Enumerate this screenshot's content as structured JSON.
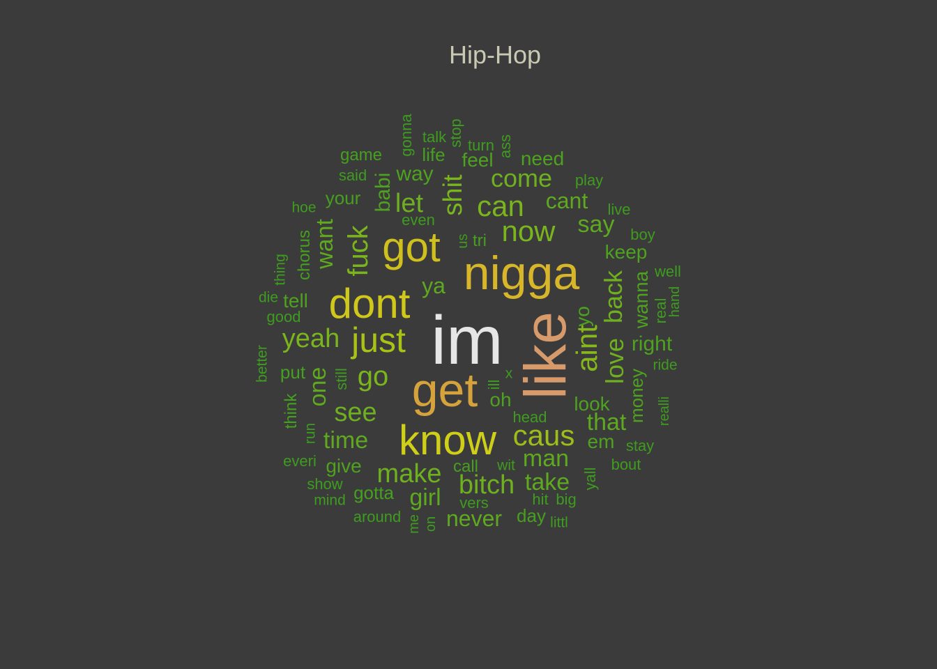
{
  "chart_data": {
    "type": "wordcloud",
    "title": "Hip-Hop",
    "colors": {
      "background": "#3b3b3b",
      "title": "#c9c9b4"
    },
    "words": [
      {
        "text": "im",
        "weight": 100,
        "color": "#e6e6e6"
      },
      {
        "text": "like",
        "weight": 82,
        "color": "#d79a6a"
      },
      {
        "text": "nigga",
        "weight": 68,
        "color": "#d8b62a"
      },
      {
        "text": "get",
        "weight": 67,
        "color": "#d6a23c"
      },
      {
        "text": "know",
        "weight": 61,
        "color": "#cfcf1a"
      },
      {
        "text": "got",
        "weight": 60,
        "color": "#cfc01e"
      },
      {
        "text": "dont",
        "weight": 60,
        "color": "#cfc71c"
      },
      {
        "text": "just",
        "weight": 50,
        "color": "#a9c216"
      },
      {
        "text": "aint",
        "weight": 46,
        "color": "#86b81c"
      },
      {
        "text": "caus",
        "weight": 43,
        "color": "#9cbd1a"
      },
      {
        "text": "now",
        "weight": 42,
        "color": "#7ab51e"
      },
      {
        "text": "can",
        "weight": 40,
        "color": "#7ab51e"
      },
      {
        "text": "fuck",
        "weight": 40,
        "color": "#7ab51e"
      },
      {
        "text": "go",
        "weight": 39,
        "color": "#7ab51e"
      },
      {
        "text": "bitch",
        "weight": 38,
        "color": "#6eb01f"
      },
      {
        "text": "make",
        "weight": 38,
        "color": "#6eb01f"
      },
      {
        "text": "shit",
        "weight": 38,
        "color": "#7ab51e"
      },
      {
        "text": "love",
        "weight": 37,
        "color": "#6eb01f"
      },
      {
        "text": "yeah",
        "weight": 37,
        "color": "#7ab51e"
      },
      {
        "text": "back",
        "weight": 36,
        "color": "#6eb01f"
      },
      {
        "text": "see",
        "weight": 36,
        "color": "#6eb01f"
      },
      {
        "text": "come",
        "weight": 35,
        "color": "#6eb01f"
      },
      {
        "text": "let",
        "weight": 35,
        "color": "#6eb01f"
      },
      {
        "text": "want",
        "weight": 34,
        "color": "#5ea91f"
      },
      {
        "text": "man",
        "weight": 33,
        "color": "#5ea91f"
      },
      {
        "text": "one",
        "weight": 33,
        "color": "#5ea91f"
      },
      {
        "text": "time",
        "weight": 33,
        "color": "#5ea91f"
      },
      {
        "text": "take",
        "weight": 32,
        "color": "#5ea91f"
      },
      {
        "text": "say",
        "weight": 32,
        "color": "#5ea91f"
      },
      {
        "text": "girl",
        "weight": 32,
        "color": "#5ea91f"
      },
      {
        "text": "that",
        "weight": 32,
        "color": "#5ea91f"
      },
      {
        "text": "never",
        "weight": 31,
        "color": "#5ea91f"
      },
      {
        "text": "cant",
        "weight": 31,
        "color": "#5ea91f"
      },
      {
        "text": "ya",
        "weight": 31,
        "color": "#5ea91f"
      },
      {
        "text": "right",
        "weight": 30,
        "color": "#4ea21f"
      },
      {
        "text": "babi",
        "weight": 30,
        "color": "#4ea21f"
      },
      {
        "text": "way",
        "weight": 30,
        "color": "#4ea21f"
      },
      {
        "text": "wanna",
        "weight": 29,
        "color": "#4ea21f"
      },
      {
        "text": "keep",
        "weight": 29,
        "color": "#4ea21f"
      },
      {
        "text": "look",
        "weight": 28,
        "color": "#4ea21f"
      },
      {
        "text": "tell",
        "weight": 28,
        "color": "#4ea21f"
      },
      {
        "text": "em",
        "weight": 28,
        "color": "#4ea21f"
      },
      {
        "text": "money",
        "weight": 27,
        "color": "#4ea21f"
      },
      {
        "text": "feel",
        "weight": 27,
        "color": "#4ea21f"
      },
      {
        "text": "need",
        "weight": 27,
        "color": "#4ea21f"
      },
      {
        "text": "yo",
        "weight": 27,
        "color": "#4ea21f"
      },
      {
        "text": "give",
        "weight": 27,
        "color": "#4ea21f"
      },
      {
        "text": "oh",
        "weight": 27,
        "color": "#4ea21f"
      },
      {
        "text": "life",
        "weight": 26,
        "color": "#46a01f"
      },
      {
        "text": "put",
        "weight": 26,
        "color": "#46a01f"
      },
      {
        "text": "gotta",
        "weight": 26,
        "color": "#46a01f"
      },
      {
        "text": "your",
        "weight": 26,
        "color": "#46a01f"
      },
      {
        "text": "day",
        "weight": 26,
        "color": "#46a01f"
      },
      {
        "text": "chorus",
        "weight": 25,
        "color": "#46a01f"
      },
      {
        "text": "game",
        "weight": 25,
        "color": "#46a01f"
      },
      {
        "text": "think",
        "weight": 24,
        "color": "#46a01f"
      },
      {
        "text": "tri",
        "weight": 24,
        "color": "#46a01f"
      },
      {
        "text": "call",
        "weight": 24,
        "color": "#46a01f"
      },
      {
        "text": "good",
        "weight": 23,
        "color": "#3e9c1f"
      },
      {
        "text": "still",
        "weight": 23,
        "color": "#3e9c1f"
      },
      {
        "text": "around",
        "weight": 23,
        "color": "#3e9c1f"
      },
      {
        "text": "even",
        "weight": 23,
        "color": "#3e9c1f"
      },
      {
        "text": "said",
        "weight": 23,
        "color": "#3e9c1f"
      },
      {
        "text": "talk",
        "weight": 23,
        "color": "#3e9c1f"
      },
      {
        "text": "hit",
        "weight": 23,
        "color": "#3e9c1f"
      },
      {
        "text": "big",
        "weight": 23,
        "color": "#3e9c1f"
      },
      {
        "text": "gonna",
        "weight": 22,
        "color": "#3e9c1f"
      },
      {
        "text": "play",
        "weight": 22,
        "color": "#3e9c1f"
      },
      {
        "text": "boy",
        "weight": 22,
        "color": "#3e9c1f"
      },
      {
        "text": "ass",
        "weight": 22,
        "color": "#3e9c1f"
      },
      {
        "text": "turn",
        "weight": 22,
        "color": "#3e9c1f"
      },
      {
        "text": "stop",
        "weight": 22,
        "color": "#3e9c1f"
      },
      {
        "text": "head",
        "weight": 22,
        "color": "#3e9c1f"
      },
      {
        "text": "live",
        "weight": 22,
        "color": "#3e9c1f"
      },
      {
        "text": "well",
        "weight": 22,
        "color": "#3e9c1f"
      },
      {
        "text": "real",
        "weight": 22,
        "color": "#3e9c1f"
      },
      {
        "text": "ill",
        "weight": 22,
        "color": "#3e9c1f"
      },
      {
        "text": "yall",
        "weight": 22,
        "color": "#3e9c1f"
      },
      {
        "text": "vers",
        "weight": 22,
        "color": "#3e9c1f"
      },
      {
        "text": "stay",
        "weight": 22,
        "color": "#3e9c1f"
      },
      {
        "text": "bout",
        "weight": 22,
        "color": "#3e9c1f"
      },
      {
        "text": "show",
        "weight": 22,
        "color": "#3e9c1f"
      },
      {
        "text": "everi",
        "weight": 22,
        "color": "#3e9c1f"
      },
      {
        "text": "littl",
        "weight": 21,
        "color": "#3e9c1f"
      },
      {
        "text": "thing",
        "weight": 21,
        "color": "#3e9c1f"
      },
      {
        "text": "hoe",
        "weight": 21,
        "color": "#3e9c1f"
      },
      {
        "text": "die",
        "weight": 21,
        "color": "#3e9c1f"
      },
      {
        "text": "better",
        "weight": 21,
        "color": "#3e9c1f"
      },
      {
        "text": "run",
        "weight": 21,
        "color": "#3e9c1f"
      },
      {
        "text": "mind",
        "weight": 21,
        "color": "#3e9c1f"
      },
      {
        "text": "wit",
        "weight": 21,
        "color": "#3e9c1f"
      },
      {
        "text": "ride",
        "weight": 21,
        "color": "#3e9c1f"
      },
      {
        "text": "realli",
        "weight": 21,
        "color": "#3e9c1f"
      },
      {
        "text": "hand",
        "weight": 21,
        "color": "#3e9c1f"
      },
      {
        "text": "us",
        "weight": 21,
        "color": "#3e9c1f"
      },
      {
        "text": "x",
        "weight": 21,
        "color": "#3e9c1f"
      },
      {
        "text": "on",
        "weight": 21,
        "color": "#3e9c1f"
      },
      {
        "text": "me",
        "weight": 21,
        "color": "#3e9c1f"
      }
    ]
  }
}
